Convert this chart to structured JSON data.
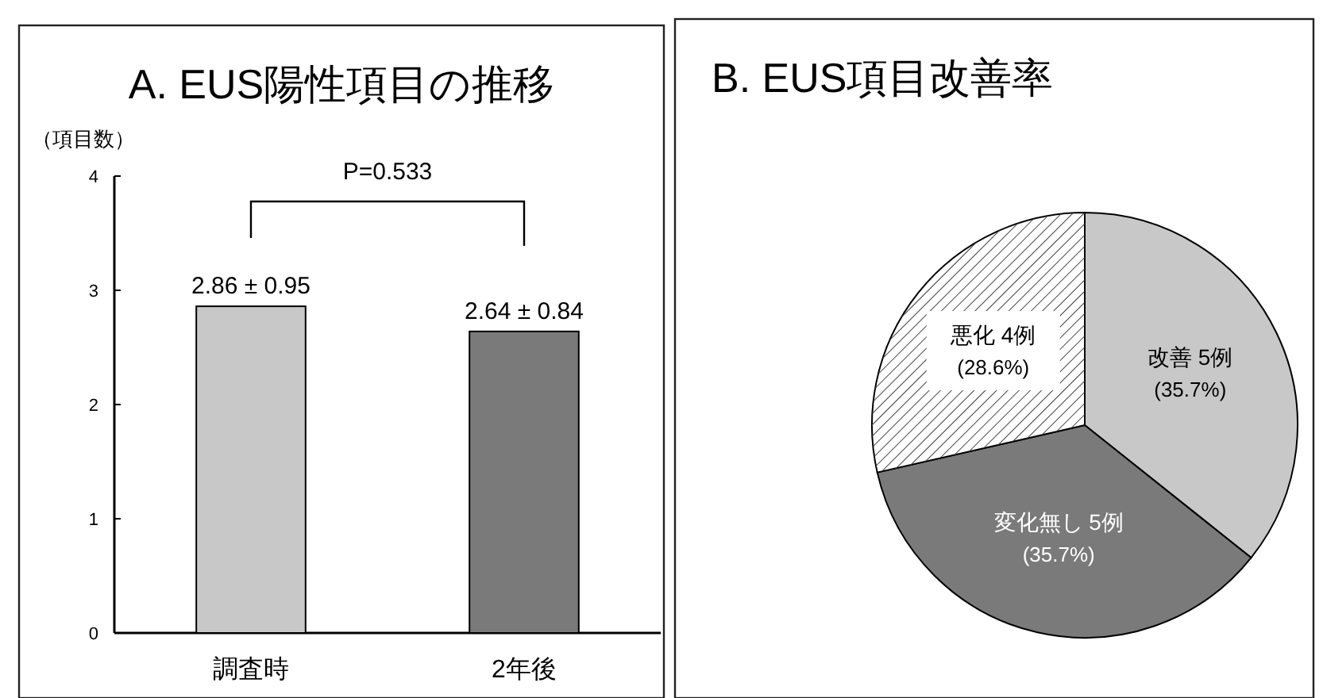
{
  "chart_data": [
    {
      "type": "bar",
      "title": "A. EUS陽性項目の推移",
      "ylabel": "（項目数）",
      "categories": [
        "調査時",
        "2年後"
      ],
      "values": [
        2.86,
        2.64
      ],
      "colors": [
        "#c8c8c8",
        "#7a7a7a"
      ],
      "value_labels": [
        "2.86 ± 0.95",
        "2.64 ± 0.84"
      ],
      "ylim": [
        0,
        4
      ],
      "yticks": [
        0,
        1,
        2,
        3,
        4
      ],
      "annotations": [
        "P=0.533"
      ]
    },
    {
      "type": "pie",
      "title": "B. EUS項目改善率",
      "categories": [
        "改善",
        "変化無し",
        "悪化"
      ],
      "values": [
        5,
        5,
        4
      ],
      "colors": [
        "#c8c8c8",
        "#7a7a7a",
        "#ffffff"
      ],
      "value_labels": [
        "5例\n(35.7%)",
        "5例\n(35.7%)",
        "4例\n(28.6%)"
      ]
    }
  ]
}
